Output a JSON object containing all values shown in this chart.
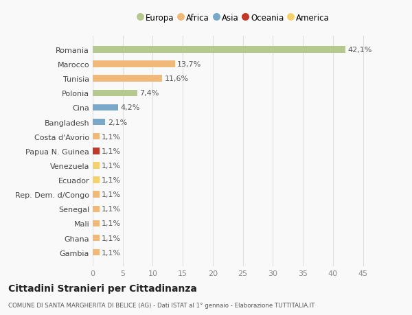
{
  "categories": [
    "Romania",
    "Marocco",
    "Tunisia",
    "Polonia",
    "Cina",
    "Bangladesh",
    "Costa d'Avorio",
    "Papua N. Guinea",
    "Venezuela",
    "Ecuador",
    "Rep. Dem. d/Congo",
    "Senegal",
    "Mali",
    "Ghana",
    "Gambia"
  ],
  "values": [
    42.1,
    13.7,
    11.6,
    7.4,
    4.2,
    2.1,
    1.1,
    1.1,
    1.1,
    1.1,
    1.1,
    1.1,
    1.1,
    1.1,
    1.1
  ],
  "labels": [
    "42,1%",
    "13,7%",
    "11,6%",
    "7,4%",
    "4,2%",
    "2,1%",
    "1,1%",
    "1,1%",
    "1,1%",
    "1,1%",
    "1,1%",
    "1,1%",
    "1,1%",
    "1,1%",
    "1,1%"
  ],
  "colors": [
    "#b5c98e",
    "#f0b97a",
    "#f0b97a",
    "#b5c98e",
    "#7aa8c9",
    "#7aa8c9",
    "#f0b97a",
    "#c0392b",
    "#f5d06e",
    "#f5d06e",
    "#f0b97a",
    "#f0b97a",
    "#f0b97a",
    "#f0b97a",
    "#f0b97a"
  ],
  "legend_labels": [
    "Europa",
    "Africa",
    "Asia",
    "Oceania",
    "America"
  ],
  "legend_colors": [
    "#b5c98e",
    "#f0b97a",
    "#7aa8c9",
    "#c0392b",
    "#f5d06e"
  ],
  "title": "Cittadini Stranieri per Cittadinanza",
  "subtitle": "COMUNE DI SANTA MARGHERITA DI BELICE (AG) - Dati ISTAT al 1° gennaio - Elaborazione TUTTITALIA.IT",
  "xlim": [
    0,
    47
  ],
  "xticks": [
    0,
    5,
    10,
    15,
    20,
    25,
    30,
    35,
    40,
    45
  ],
  "background_color": "#f9f9f9",
  "grid_color": "#e0e0e0",
  "bar_height": 0.45,
  "label_fontsize": 8,
  "ytick_fontsize": 8,
  "xtick_fontsize": 8
}
